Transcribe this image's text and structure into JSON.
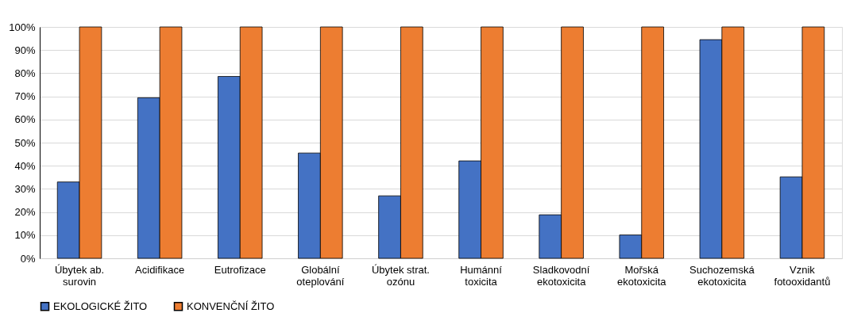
{
  "chart_data": {
    "type": "bar",
    "categories": [
      "Úbytek ab. surovin",
      "Acidifikace",
      "Eutrofizace",
      "Globální oteplování",
      "Úbytek strat. ozónu",
      "Humánní toxicita",
      "Sladkovodní ekotoxicita",
      "Mořská ekotoxicita",
      "Suchozemská ekotoxicita",
      "Vznik fotooxidantů"
    ],
    "series": [
      {
        "name": "EKOLOGICKÉ ŽITO",
        "color": "#4472c4",
        "values": [
          33,
          69.4,
          78.6,
          45.5,
          27,
          42.1,
          18.8,
          10.1,
          94.5,
          35.2
        ]
      },
      {
        "name": "KONVENČNÍ ŽITO",
        "color": "#ed7d31",
        "values": [
          100,
          100,
          100,
          100,
          100,
          100,
          100,
          100,
          100,
          100
        ]
      }
    ],
    "ylim": [
      0,
      100
    ],
    "yticks": [
      {
        "value": 0,
        "label": "0%"
      },
      {
        "value": 10,
        "label": "10%"
      },
      {
        "value": 20,
        "label": "20%"
      },
      {
        "value": 30,
        "label": "30%"
      },
      {
        "value": 40,
        "label": "40%"
      },
      {
        "value": 50,
        "label": "50%"
      },
      {
        "value": 60,
        "label": "60%"
      },
      {
        "value": 70,
        "label": "70%"
      },
      {
        "value": 80,
        "label": "80%"
      },
      {
        "value": 90,
        "label": "90%"
      },
      {
        "value": 100,
        "label": "100%"
      }
    ],
    "grid": "y",
    "legend": "bottom"
  }
}
